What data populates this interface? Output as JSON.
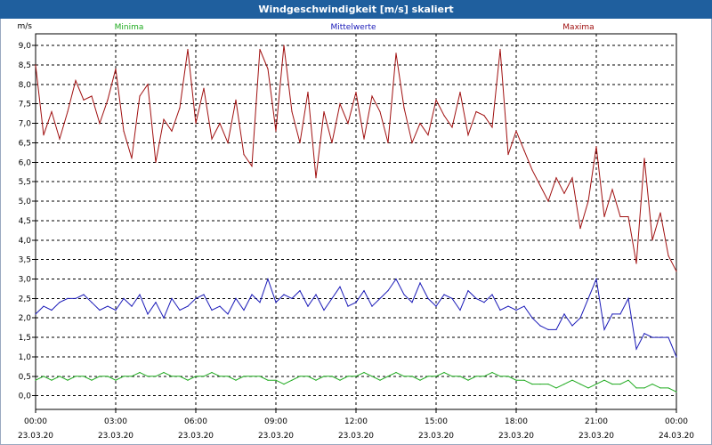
{
  "window": {
    "title": "Windgeschwindigkeit [m/s] skaliert"
  },
  "chart_data": {
    "type": "line",
    "title": "Windgeschwindigkeit [m/s] skaliert",
    "ylabel": "m/s",
    "ylim": [
      -0.35,
      9.3
    ],
    "y_ticks": [
      "0,0",
      "0,5",
      "1,0",
      "1,5",
      "2,0",
      "2,5",
      "3,0",
      "3,5",
      "4,0",
      "4,5",
      "5,0",
      "5,5",
      "6,0",
      "6,5",
      "7,0",
      "7,5",
      "8,0",
      "8,5",
      "9,0"
    ],
    "xlim": [
      0,
      24
    ],
    "x_ticks": [
      {
        "time": "00:00",
        "date": "23.03.20"
      },
      {
        "time": "03:00",
        "date": "23.03.20"
      },
      {
        "time": "06:00",
        "date": "23.03.20"
      },
      {
        "time": "09:00",
        "date": "23.03.20"
      },
      {
        "time": "12:00",
        "date": "23.03.20"
      },
      {
        "time": "15:00",
        "date": "23.03.20"
      },
      {
        "time": "18:00",
        "date": "23.03.20"
      },
      {
        "time": "21:00",
        "date": "23.03.20"
      },
      {
        "time": "00:00",
        "date": "24.03.20"
      }
    ],
    "grid": true,
    "legend_position": "top",
    "series": [
      {
        "name": "Minima",
        "color": "#1faa1f",
        "x": [
          0,
          0.3,
          0.6,
          0.9,
          1.2,
          1.5,
          1.8,
          2.1,
          2.4,
          2.7,
          3.0,
          3.3,
          3.6,
          3.9,
          4.2,
          4.5,
          4.8,
          5.1,
          5.4,
          5.7,
          6.0,
          6.3,
          6.6,
          6.9,
          7.2,
          7.5,
          7.8,
          8.1,
          8.4,
          8.7,
          9.0,
          9.3,
          9.6,
          9.9,
          10.2,
          10.5,
          10.8,
          11.1,
          11.4,
          11.7,
          12.0,
          12.3,
          12.6,
          12.9,
          13.2,
          13.5,
          13.8,
          14.1,
          14.4,
          14.7,
          15.0,
          15.3,
          15.6,
          15.9,
          16.2,
          16.5,
          16.8,
          17.1,
          17.4,
          17.7,
          18.0,
          18.3,
          18.6,
          18.9,
          19.2,
          19.5,
          19.8,
          20.1,
          20.4,
          20.7,
          21.0,
          21.3,
          21.6,
          21.9,
          22.2,
          22.5,
          22.8,
          23.1,
          23.4,
          23.7,
          24.0
        ],
        "y": [
          0.4,
          0.5,
          0.4,
          0.5,
          0.4,
          0.5,
          0.5,
          0.4,
          0.5,
          0.5,
          0.4,
          0.5,
          0.5,
          0.6,
          0.5,
          0.5,
          0.6,
          0.5,
          0.5,
          0.4,
          0.5,
          0.5,
          0.6,
          0.5,
          0.5,
          0.4,
          0.5,
          0.5,
          0.5,
          0.4,
          0.4,
          0.3,
          0.4,
          0.5,
          0.5,
          0.4,
          0.5,
          0.5,
          0.4,
          0.5,
          0.5,
          0.6,
          0.5,
          0.4,
          0.5,
          0.6,
          0.5,
          0.5,
          0.4,
          0.5,
          0.5,
          0.6,
          0.5,
          0.5,
          0.4,
          0.5,
          0.5,
          0.6,
          0.5,
          0.5,
          0.4,
          0.4,
          0.3,
          0.3,
          0.3,
          0.2,
          0.3,
          0.4,
          0.3,
          0.2,
          0.3,
          0.4,
          0.3,
          0.3,
          0.4,
          0.2,
          0.2,
          0.3,
          0.2,
          0.2,
          0.1
        ]
      },
      {
        "name": "Mittelwerte",
        "color": "#1a1ab8",
        "x": [
          0,
          0.3,
          0.6,
          0.9,
          1.2,
          1.5,
          1.8,
          2.1,
          2.4,
          2.7,
          3.0,
          3.3,
          3.6,
          3.9,
          4.2,
          4.5,
          4.8,
          5.1,
          5.4,
          5.7,
          6.0,
          6.3,
          6.6,
          6.9,
          7.2,
          7.5,
          7.8,
          8.1,
          8.4,
          8.7,
          9.0,
          9.3,
          9.6,
          9.9,
          10.2,
          10.5,
          10.8,
          11.1,
          11.4,
          11.7,
          12.0,
          12.3,
          12.6,
          12.9,
          13.2,
          13.5,
          13.8,
          14.1,
          14.4,
          14.7,
          15.0,
          15.3,
          15.6,
          15.9,
          16.2,
          16.5,
          16.8,
          17.1,
          17.4,
          17.7,
          18.0,
          18.3,
          18.6,
          18.9,
          19.2,
          19.5,
          19.8,
          20.1,
          20.4,
          20.7,
          21.0,
          21.3,
          21.6,
          21.9,
          22.2,
          22.5,
          22.8,
          23.1,
          23.4,
          23.7,
          24.0
        ],
        "y": [
          2.1,
          2.3,
          2.2,
          2.4,
          2.5,
          2.5,
          2.6,
          2.4,
          2.2,
          2.3,
          2.2,
          2.5,
          2.3,
          2.6,
          2.1,
          2.4,
          2.0,
          2.5,
          2.2,
          2.3,
          2.5,
          2.6,
          2.2,
          2.3,
          2.1,
          2.5,
          2.2,
          2.6,
          2.4,
          3.0,
          2.4,
          2.6,
          2.5,
          2.7,
          2.3,
          2.6,
          2.2,
          2.5,
          2.8,
          2.3,
          2.4,
          2.7,
          2.3,
          2.5,
          2.7,
          3.0,
          2.6,
          2.4,
          2.9,
          2.5,
          2.3,
          2.6,
          2.5,
          2.2,
          2.7,
          2.5,
          2.4,
          2.6,
          2.2,
          2.3,
          2.2,
          2.3,
          2.0,
          1.8,
          1.7,
          1.7,
          2.1,
          1.8,
          2.0,
          2.5,
          3.0,
          1.7,
          2.1,
          2.1,
          2.5,
          1.2,
          1.6,
          1.5,
          1.5,
          1.5,
          1.0
        ]
      },
      {
        "name": "Maxima",
        "color": "#a01010",
        "x": [
          0,
          0.3,
          0.6,
          0.9,
          1.2,
          1.5,
          1.8,
          2.1,
          2.4,
          2.7,
          3.0,
          3.3,
          3.6,
          3.9,
          4.2,
          4.5,
          4.8,
          5.1,
          5.4,
          5.7,
          6.0,
          6.3,
          6.6,
          6.9,
          7.2,
          7.5,
          7.8,
          8.1,
          8.4,
          8.7,
          9.0,
          9.3,
          9.6,
          9.9,
          10.2,
          10.5,
          10.8,
          11.1,
          11.4,
          11.7,
          12.0,
          12.3,
          12.6,
          12.9,
          13.2,
          13.5,
          13.8,
          14.1,
          14.4,
          14.7,
          15.0,
          15.3,
          15.6,
          15.9,
          16.2,
          16.5,
          16.8,
          17.1,
          17.4,
          17.7,
          18.0,
          18.3,
          18.6,
          18.9,
          19.2,
          19.5,
          19.8,
          20.1,
          20.4,
          20.7,
          21.0,
          21.3,
          21.6,
          21.9,
          22.2,
          22.5,
          22.8,
          23.1,
          23.4,
          23.7,
          24.0
        ],
        "y": [
          8.5,
          6.7,
          7.3,
          6.6,
          7.3,
          8.1,
          7.6,
          7.7,
          7.0,
          7.6,
          8.4,
          6.8,
          6.1,
          7.7,
          8.0,
          6.0,
          7.1,
          6.8,
          7.4,
          8.9,
          7.0,
          7.9,
          6.6,
          7.0,
          6.5,
          7.6,
          6.2,
          5.9,
          8.9,
          8.4,
          6.8,
          9.0,
          7.3,
          6.5,
          7.8,
          5.6,
          7.3,
          6.5,
          7.5,
          7.0,
          7.8,
          6.6,
          7.7,
          7.3,
          6.5,
          8.8,
          7.4,
          6.5,
          7.0,
          6.7,
          7.6,
          7.2,
          6.9,
          7.8,
          6.7,
          7.3,
          7.2,
          6.9,
          8.9,
          6.2,
          6.8,
          6.3,
          5.8,
          5.4,
          5.0,
          5.6,
          5.2,
          5.6,
          4.3,
          5.0,
          6.4,
          4.6,
          5.3,
          4.6,
          4.6,
          3.4,
          6.1,
          4.0,
          4.7,
          3.6,
          3.2
        ]
      }
    ]
  }
}
